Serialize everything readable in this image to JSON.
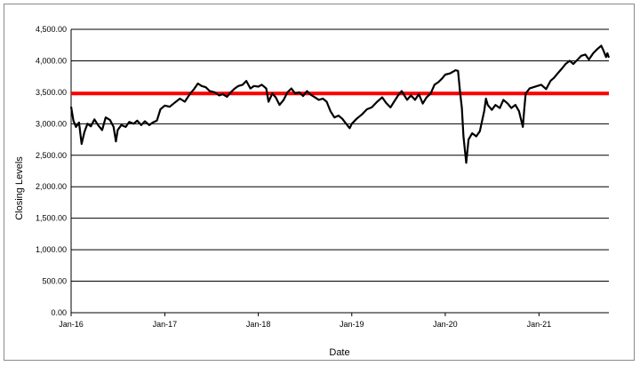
{
  "chart_data": {
    "type": "line",
    "title": "",
    "xlabel": "Date",
    "ylabel": "Closing Levels",
    "x_range": [
      "2016-01-01",
      "2021-10-01"
    ],
    "x_tick_labels": [
      "Jan-16",
      "Jan-17",
      "Jan-18",
      "Jan-19",
      "Jan-20",
      "Jan-21"
    ],
    "x_tick_dates": [
      "2016-01-01",
      "2017-01-01",
      "2018-01-01",
      "2019-01-01",
      "2020-01-01",
      "2021-01-01"
    ],
    "ylim": [
      0,
      4500
    ],
    "y_ticks": [
      0,
      500,
      1000,
      1500,
      2000,
      2500,
      3000,
      3500,
      4000,
      4500
    ],
    "y_tick_labels": [
      "0.00",
      "500.00",
      "1,000.00",
      "1,500.00",
      "2,000.00",
      "2,500.00",
      "3,000.00",
      "3,500.00",
      "4,000.00",
      "4,500.00"
    ],
    "grid": "horizontal",
    "legend": "none",
    "reference_line": {
      "value": 3480,
      "color": "#ff0000"
    },
    "series": [
      {
        "color": "#000000",
        "points": [
          [
            "2016-01-01",
            3270
          ],
          [
            "2016-01-10",
            3050
          ],
          [
            "2016-01-20",
            2950
          ],
          [
            "2016-02-01",
            3020
          ],
          [
            "2016-02-11",
            2680
          ],
          [
            "2016-02-22",
            2870
          ],
          [
            "2016-03-05",
            3000
          ],
          [
            "2016-03-18",
            2960
          ],
          [
            "2016-04-01",
            3070
          ],
          [
            "2016-04-15",
            2980
          ],
          [
            "2016-05-01",
            2900
          ],
          [
            "2016-05-15",
            3100
          ],
          [
            "2016-06-01",
            3060
          ],
          [
            "2016-06-15",
            2950
          ],
          [
            "2016-06-24",
            2720
          ],
          [
            "2016-07-01",
            2900
          ],
          [
            "2016-07-15",
            2980
          ],
          [
            "2016-08-01",
            2950
          ],
          [
            "2016-08-15",
            3030
          ],
          [
            "2016-09-01",
            3000
          ],
          [
            "2016-09-15",
            3050
          ],
          [
            "2016-10-01",
            2980
          ],
          [
            "2016-10-15",
            3040
          ],
          [
            "2016-11-01",
            2980
          ],
          [
            "2016-11-15",
            3020
          ],
          [
            "2016-12-01",
            3050
          ],
          [
            "2016-12-15",
            3230
          ],
          [
            "2017-01-01",
            3290
          ],
          [
            "2017-01-20",
            3270
          ],
          [
            "2017-02-10",
            3340
          ],
          [
            "2017-03-01",
            3400
          ],
          [
            "2017-03-20",
            3350
          ],
          [
            "2017-04-10",
            3480
          ],
          [
            "2017-04-25",
            3550
          ],
          [
            "2017-05-10",
            3640
          ],
          [
            "2017-05-25",
            3600
          ],
          [
            "2017-06-10",
            3580
          ],
          [
            "2017-06-25",
            3520
          ],
          [
            "2017-07-15",
            3500
          ],
          [
            "2017-08-01",
            3450
          ],
          [
            "2017-08-15",
            3470
          ],
          [
            "2017-09-01",
            3430
          ],
          [
            "2017-09-15",
            3500
          ],
          [
            "2017-10-01",
            3560
          ],
          [
            "2017-10-15",
            3600
          ],
          [
            "2017-11-01",
            3620
          ],
          [
            "2017-11-15",
            3680
          ],
          [
            "2017-12-01",
            3560
          ],
          [
            "2017-12-15",
            3600
          ],
          [
            "2018-01-01",
            3590
          ],
          [
            "2018-01-15",
            3620
          ],
          [
            "2018-02-01",
            3560
          ],
          [
            "2018-02-10",
            3350
          ],
          [
            "2018-02-25",
            3480
          ],
          [
            "2018-03-10",
            3420
          ],
          [
            "2018-03-25",
            3300
          ],
          [
            "2018-04-10",
            3380
          ],
          [
            "2018-04-25",
            3500
          ],
          [
            "2018-05-10",
            3560
          ],
          [
            "2018-05-25",
            3480
          ],
          [
            "2018-06-10",
            3500
          ],
          [
            "2018-06-25",
            3440
          ],
          [
            "2018-07-10",
            3520
          ],
          [
            "2018-07-25",
            3460
          ],
          [
            "2018-08-10",
            3420
          ],
          [
            "2018-08-25",
            3380
          ],
          [
            "2018-09-10",
            3400
          ],
          [
            "2018-09-25",
            3350
          ],
          [
            "2018-10-10",
            3200
          ],
          [
            "2018-10-25",
            3100
          ],
          [
            "2018-11-10",
            3130
          ],
          [
            "2018-11-25",
            3080
          ],
          [
            "2018-12-10",
            3000
          ],
          [
            "2018-12-24",
            2930
          ],
          [
            "2019-01-01",
            3000
          ],
          [
            "2019-01-20",
            3080
          ],
          [
            "2019-02-10",
            3150
          ],
          [
            "2019-03-01",
            3230
          ],
          [
            "2019-03-20",
            3260
          ],
          [
            "2019-04-10",
            3350
          ],
          [
            "2019-04-30",
            3420
          ],
          [
            "2019-05-15",
            3330
          ],
          [
            "2019-06-01",
            3260
          ],
          [
            "2019-06-15",
            3350
          ],
          [
            "2019-07-01",
            3450
          ],
          [
            "2019-07-15",
            3520
          ],
          [
            "2019-08-05",
            3380
          ],
          [
            "2019-08-20",
            3450
          ],
          [
            "2019-09-05",
            3380
          ],
          [
            "2019-09-20",
            3470
          ],
          [
            "2019-10-05",
            3320
          ],
          [
            "2019-10-20",
            3420
          ],
          [
            "2019-11-05",
            3480
          ],
          [
            "2019-11-20",
            3620
          ],
          [
            "2019-12-05",
            3660
          ],
          [
            "2019-12-20",
            3720
          ],
          [
            "2020-01-01",
            3780
          ],
          [
            "2020-01-20",
            3800
          ],
          [
            "2020-02-10",
            3850
          ],
          [
            "2020-02-20",
            3840
          ],
          [
            "2020-02-28",
            3500
          ],
          [
            "2020-03-06",
            3250
          ],
          [
            "2020-03-12",
            2800
          ],
          [
            "2020-03-23",
            2380
          ],
          [
            "2020-04-01",
            2750
          ],
          [
            "2020-04-15",
            2850
          ],
          [
            "2020-05-01",
            2800
          ],
          [
            "2020-05-15",
            2880
          ],
          [
            "2020-06-01",
            3200
          ],
          [
            "2020-06-08",
            3400
          ],
          [
            "2020-06-15",
            3300
          ],
          [
            "2020-07-01",
            3220
          ],
          [
            "2020-07-15",
            3300
          ],
          [
            "2020-08-01",
            3250
          ],
          [
            "2020-08-15",
            3380
          ],
          [
            "2020-09-01",
            3320
          ],
          [
            "2020-09-15",
            3250
          ],
          [
            "2020-10-01",
            3300
          ],
          [
            "2020-10-15",
            3200
          ],
          [
            "2020-10-30",
            2950
          ],
          [
            "2020-11-05",
            3250
          ],
          [
            "2020-11-10",
            3480
          ],
          [
            "2020-11-25",
            3560
          ],
          [
            "2020-12-10",
            3580
          ],
          [
            "2020-12-25",
            3600
          ],
          [
            "2021-01-10",
            3620
          ],
          [
            "2021-01-29",
            3550
          ],
          [
            "2021-02-15",
            3680
          ],
          [
            "2021-03-01",
            3730
          ],
          [
            "2021-03-15",
            3800
          ],
          [
            "2021-04-01",
            3880
          ],
          [
            "2021-04-15",
            3950
          ],
          [
            "2021-05-01",
            4000
          ],
          [
            "2021-05-15",
            3950
          ],
          [
            "2021-06-01",
            4020
          ],
          [
            "2021-06-15",
            4080
          ],
          [
            "2021-07-01",
            4100
          ],
          [
            "2021-07-15",
            4020
          ],
          [
            "2021-08-01",
            4120
          ],
          [
            "2021-08-15",
            4180
          ],
          [
            "2021-09-01",
            4240
          ],
          [
            "2021-09-10",
            4160
          ],
          [
            "2021-09-20",
            4060
          ],
          [
            "2021-09-25",
            4120
          ],
          [
            "2021-10-01",
            4050
          ]
        ]
      }
    ]
  }
}
